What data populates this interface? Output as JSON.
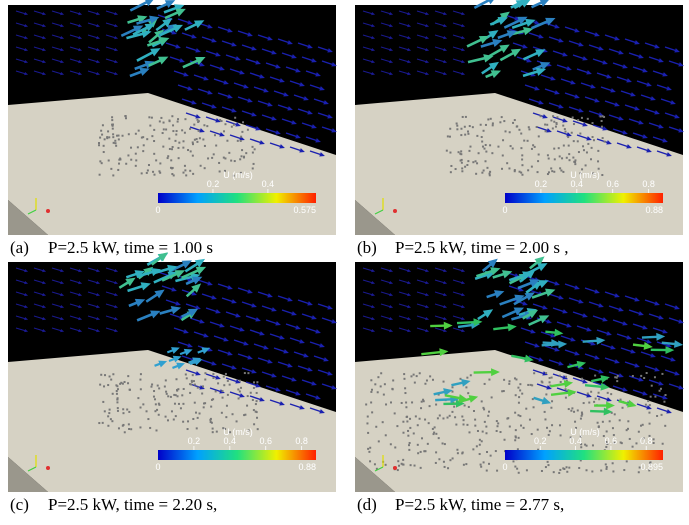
{
  "panels": [
    {
      "label": "(a)",
      "caption": "P=2.5 kW, time = 1.00 s",
      "colorbar": {
        "title": "U (m/s)",
        "min": "0",
        "max": "0.575",
        "ticks": [
          "0.2",
          "0.4"
        ]
      }
    },
    {
      "label": "(b)",
      "caption": "P=2.5 kW, time = 2.00 s ,",
      "colorbar": {
        "title": "U (m/s)",
        "min": "0",
        "max": "0.88",
        "ticks": [
          "0.2",
          "0.4",
          "0.6",
          "0.8"
        ]
      }
    },
    {
      "label": "(c)",
      "caption": "P=2.5 kW, time = 2.20 s,",
      "colorbar": {
        "title": "U (m/s)",
        "min": "0",
        "max": "0.88",
        "ticks": [
          "0.2",
          "0.4",
          "0.6",
          "0.8"
        ]
      }
    },
    {
      "label": "(d)",
      "caption": "P=2.5 kW, time = 2.77 s,",
      "colorbar": {
        "title": "U (m/s)",
        "min": "0",
        "max": "0.895",
        "ticks": [
          "0.2",
          "0.4",
          "0.6",
          "0.8"
        ]
      }
    }
  ]
}
